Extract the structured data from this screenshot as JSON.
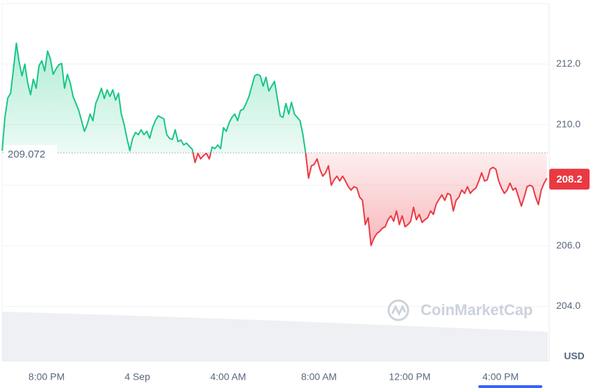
{
  "chart_data": {
    "type": "line",
    "currency": "USD",
    "watermark": "CoinMarketCap",
    "baseline": 209.072,
    "current_price": 208.2,
    "up_color": "#16c784",
    "down_color": "#ea3943",
    "grid": true,
    "xlim": [
      -117.6,
      1325
    ],
    "ylim": [
      202.2,
      214.0
    ],
    "xticks": [
      {
        "value": 0,
        "label": "8:00 PM"
      },
      {
        "value": 240,
        "label": "4 Sep"
      },
      {
        "value": 480,
        "label": "4:00 AM"
      },
      {
        "value": 720,
        "label": "8:00 AM"
      },
      {
        "value": 960,
        "label": "12:00 PM"
      },
      {
        "value": 1200,
        "label": "4:00 PM"
      }
    ],
    "yticks": [
      {
        "value": 204,
        "label": "204.0"
      },
      {
        "value": 206,
        "label": "206.0"
      },
      {
        "value": 208,
        "label": "208.0"
      },
      {
        "value": 210,
        "label": "210.0"
      },
      {
        "value": 212,
        "label": "212.0"
      }
    ],
    "x": [
      -117.5,
      -110,
      -102.5,
      -95,
      -87.5,
      -80,
      -72.5,
      -65,
      -57.5,
      -50,
      -42.5,
      -35,
      -27.5,
      -20,
      -12.5,
      -5,
      2.5,
      10,
      17.5,
      25,
      32.5,
      40,
      47.5,
      55,
      62.5,
      70,
      77.5,
      85,
      92.5,
      100,
      107.5,
      115,
      122.5,
      130,
      137.5,
      145,
      152.5,
      160,
      167.5,
      175,
      182.5,
      190,
      197.5,
      205,
      212.5,
      220,
      227.5,
      235,
      242.5,
      250,
      257.5,
      265,
      272.5,
      280,
      287.5,
      295,
      302.5,
      310,
      317.5,
      325,
      332.5,
      340,
      347.5,
      355,
      362.5,
      370,
      377.5,
      385,
      392.5,
      400,
      407.5,
      415,
      422.5,
      430,
      437.5,
      445,
      452.5,
      460,
      467.5,
      475,
      482.5,
      490,
      497.5,
      505,
      512.5,
      520,
      527.5,
      535,
      542.5,
      550,
      557.5,
      565,
      572.5,
      580,
      587.5,
      595,
      602.5,
      610,
      617.5,
      625,
      632.5,
      640,
      647.5,
      655,
      662.5,
      670,
      677.5,
      685,
      692.5,
      700,
      707.5,
      715,
      722.5,
      730,
      737.5,
      745,
      752.5,
      760,
      767.5,
      775,
      782.5,
      790,
      797.5,
      805,
      812.5,
      820,
      827.5,
      835,
      842.5,
      850,
      857.5,
      865,
      872.5,
      880,
      887.5,
      895,
      902.5,
      910,
      917.5,
      925,
      932.5,
      940,
      947.5,
      955,
      962.5,
      970,
      977.5,
      985,
      992.5,
      1000,
      1007.5,
      1015,
      1022.5,
      1030,
      1037.5,
      1045,
      1052.5,
      1060,
      1067.5,
      1075,
      1082.5,
      1090,
      1097.5,
      1105,
      1112.5,
      1120,
      1127.5,
      1135,
      1142.5,
      1150,
      1157.5,
      1165,
      1172.5,
      1180,
      1187.5,
      1195,
      1202.5,
      1210,
      1217.5,
      1225,
      1232.5,
      1240,
      1247.5,
      1255,
      1262.5,
      1270,
      1277.5,
      1285,
      1292.5,
      1300,
      1307.5,
      1315,
      1322.5
    ],
    "values": [
      209.14,
      210.24,
      210.88,
      211.04,
      211.84,
      212.69,
      212.07,
      211.61,
      212.0,
      211.38,
      210.99,
      211.5,
      211.2,
      211.95,
      212.11,
      211.77,
      212.43,
      212.18,
      211.66,
      211.84,
      211.98,
      212.02,
      211.2,
      211.66,
      211.38,
      210.93,
      210.7,
      210.47,
      210.13,
      209.78,
      210.01,
      210.35,
      210.13,
      210.7,
      210.93,
      211.2,
      210.86,
      211.15,
      210.93,
      211.15,
      210.81,
      211.04,
      210.35,
      210.01,
      209.55,
      209.14,
      209.55,
      209.74,
      209.67,
      209.83,
      209.67,
      209.78,
      209.55,
      209.9,
      210.13,
      210.29,
      210.24,
      210.19,
      209.67,
      209.55,
      209.51,
      209.83,
      209.44,
      209.49,
      209.33,
      209.39,
      209.28,
      209.19,
      208.75,
      209.05,
      208.87,
      208.98,
      209.05,
      208.87,
      209.26,
      209.21,
      209.33,
      209.21,
      209.9,
      209.78,
      210.06,
      210.24,
      210.35,
      210.13,
      210.47,
      210.51,
      210.7,
      210.93,
      211.27,
      211.61,
      211.66,
      211.61,
      211.27,
      211.57,
      211.11,
      211.27,
      211.43,
      210.88,
      210.29,
      210.24,
      210.7,
      210.35,
      210.74,
      210.35,
      210.24,
      210.13,
      209.67,
      209.05,
      208.23,
      208.64,
      208.69,
      208.87,
      208.53,
      208.3,
      208.41,
      208.64,
      208.0,
      208.18,
      208.3,
      208.14,
      208.3,
      208.14,
      207.95,
      207.84,
      207.95,
      207.91,
      207.61,
      207.5,
      206.7,
      206.93,
      206.01,
      206.24,
      206.4,
      206.47,
      206.58,
      206.63,
      206.86,
      206.99,
      206.81,
      207.15,
      206.7,
      206.99,
      206.63,
      206.7,
      206.81,
      207.27,
      206.86,
      207.04,
      206.77,
      206.86,
      206.93,
      207.15,
      207.04,
      207.38,
      207.54,
      207.68,
      207.5,
      207.73,
      207.68,
      207.15,
      207.5,
      207.61,
      207.84,
      207.73,
      207.95,
      207.73,
      207.84,
      207.91,
      208.14,
      208.41,
      208.14,
      208.18,
      208.53,
      208.59,
      208.53,
      208.14,
      207.91,
      207.73,
      207.84,
      208.07,
      207.84,
      207.91,
      207.61,
      207.31,
      207.61,
      207.95,
      208.0,
      207.95,
      207.61,
      207.36,
      207.84,
      208.07,
      208.23
    ]
  }
}
